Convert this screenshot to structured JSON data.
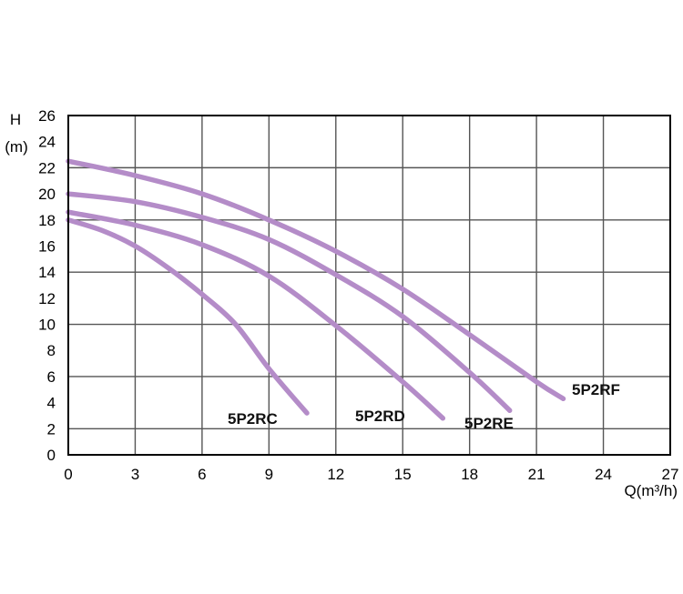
{
  "chart_data": {
    "type": "line",
    "xlabel": "Q(m³/h)",
    "ylabel_top": "H",
    "ylabel_unit": "(m)",
    "xlim": [
      0,
      27
    ],
    "ylim": [
      0,
      26
    ],
    "x_ticks": [
      0,
      3,
      6,
      9,
      12,
      15,
      18,
      21,
      24,
      27
    ],
    "y_ticks": [
      0,
      2,
      4,
      6,
      8,
      10,
      12,
      14,
      16,
      18,
      20,
      22,
      24,
      26
    ],
    "grid": true,
    "legend": "none",
    "line_color": "#b48cc8",
    "series": [
      {
        "name": "5P2RC",
        "points": [
          [
            0,
            18
          ],
          [
            1.5,
            17.2
          ],
          [
            3,
            16
          ],
          [
            4.5,
            14.3
          ],
          [
            6,
            12.3
          ],
          [
            7.5,
            10
          ],
          [
            9,
            6.6
          ],
          [
            10.7,
            3.2
          ]
        ]
      },
      {
        "name": "5P2RD",
        "points": [
          [
            0,
            18.6
          ],
          [
            3,
            17.6
          ],
          [
            6,
            16.1
          ],
          [
            9,
            13.7
          ],
          [
            12,
            9.9
          ],
          [
            15,
            5.6
          ],
          [
            16.8,
            2.8
          ]
        ]
      },
      {
        "name": "5P2RE",
        "points": [
          [
            0,
            20
          ],
          [
            3,
            19.4
          ],
          [
            6,
            18.2
          ],
          [
            9,
            16.5
          ],
          [
            12,
            13.8
          ],
          [
            15,
            10.6
          ],
          [
            18,
            6.3
          ],
          [
            19.8,
            3.4
          ]
        ]
      },
      {
        "name": "5P2RF",
        "points": [
          [
            0,
            22.5
          ],
          [
            3,
            21.4
          ],
          [
            6,
            20
          ],
          [
            9,
            18
          ],
          [
            12,
            15.6
          ],
          [
            15,
            12.7
          ],
          [
            18,
            9.2
          ],
          [
            21,
            5.6
          ],
          [
            22.2,
            4.3
          ]
        ]
      }
    ]
  }
}
